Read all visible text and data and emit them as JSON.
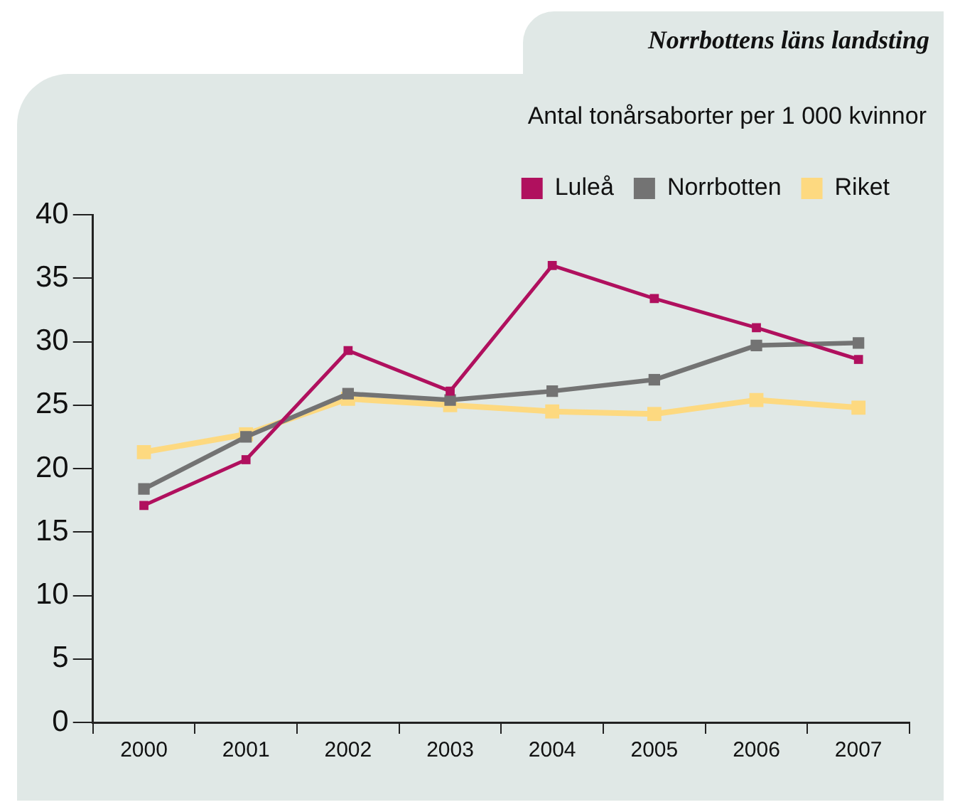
{
  "chart_data": {
    "type": "line",
    "title": "Norrbottens läns landsting",
    "subtitle": "Antal tonårsaborter per 1 000 kvinnor",
    "categories": [
      "2000",
      "2001",
      "2002",
      "2003",
      "2004",
      "2005",
      "2006",
      "2007"
    ],
    "series": [
      {
        "name": "Luleå",
        "color": "#b0105e",
        "values": [
          17.1,
          20.7,
          29.3,
          26.1,
          36.0,
          33.4,
          31.1,
          28.6
        ]
      },
      {
        "name": "Norrbotten",
        "color": "#737373",
        "values": [
          18.4,
          22.5,
          25.9,
          25.4,
          26.1,
          27.0,
          29.7,
          29.9
        ]
      },
      {
        "name": "Riket",
        "color": "#fdd980",
        "values": [
          21.3,
          22.7,
          25.5,
          25.0,
          24.5,
          24.3,
          25.4,
          24.8
        ]
      }
    ],
    "ylim": [
      0,
      40
    ],
    "yticks": [
      0,
      5,
      10,
      15,
      20,
      25,
      30,
      35,
      40
    ],
    "grid": false,
    "legend": "top right",
    "marker": "square",
    "line_style": "solid"
  }
}
